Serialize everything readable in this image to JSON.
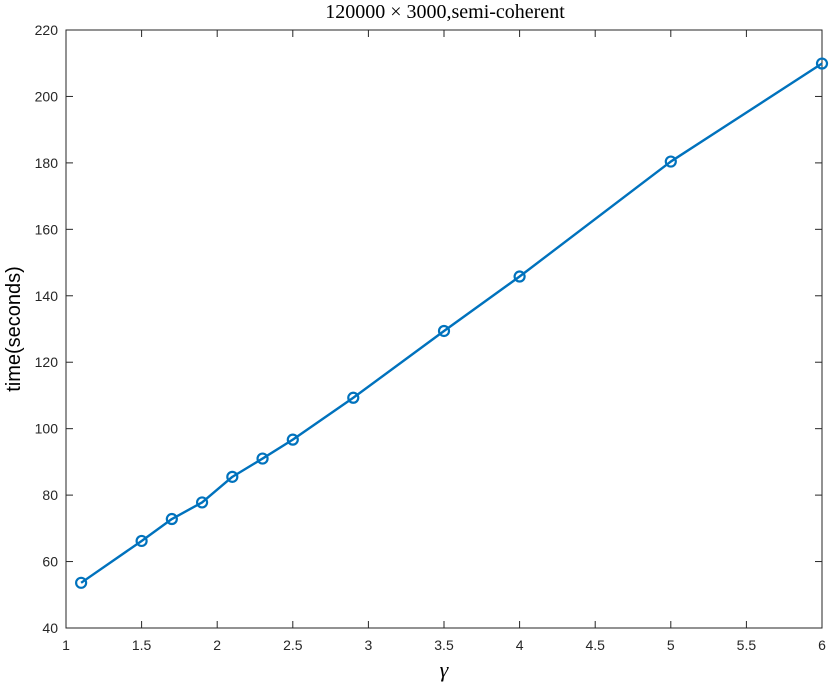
{
  "chart_data": {
    "type": "line",
    "title": "120000 × 3000,semi-coherent",
    "xlabel": "γ",
    "ylabel": "time(seconds)",
    "xlim": [
      1,
      6
    ],
    "ylim": [
      40,
      220
    ],
    "xticks": [
      1,
      1.5,
      2,
      2.5,
      3,
      3.5,
      4,
      4.5,
      5,
      5.5,
      6
    ],
    "xtick_labels": [
      "1",
      "1.5",
      "2",
      "2.5",
      "3",
      "3.5",
      "4",
      "4.5",
      "5",
      "5.5",
      "6"
    ],
    "yticks": [
      40,
      60,
      80,
      100,
      120,
      140,
      160,
      180,
      200,
      220
    ],
    "ytick_labels": [
      "40",
      "60",
      "80",
      "100",
      "120",
      "140",
      "160",
      "180",
      "200",
      "220"
    ],
    "grid": false,
    "series": [
      {
        "color": "#0072bd",
        "marker": "circle",
        "x": [
          1.1,
          1.5,
          1.7,
          1.9,
          2.1,
          2.3,
          2.5,
          2.9,
          3.5,
          4.0,
          5.0,
          6.0
        ],
        "y": [
          53.6,
          66.2,
          72.8,
          77.8,
          85.5,
          91.0,
          96.7,
          109.3,
          129.4,
          145.8,
          180.4,
          209.9
        ]
      }
    ]
  }
}
